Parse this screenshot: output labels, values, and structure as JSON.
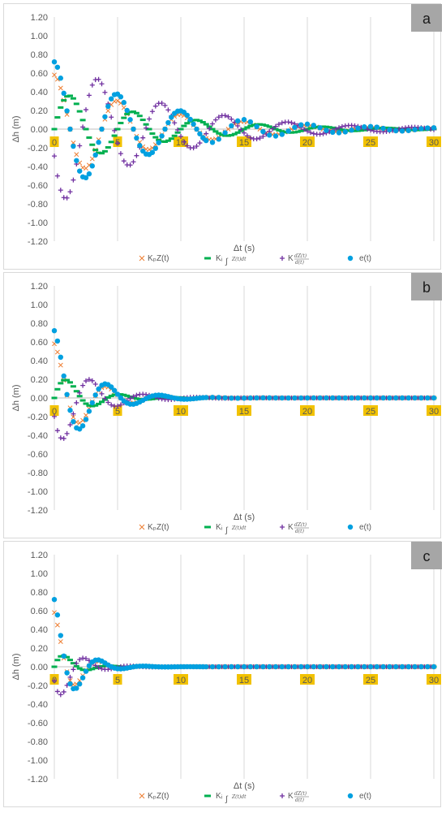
{
  "chart_data": [
    {
      "type": "scatter",
      "panel_label": "a",
      "xlabel": "Δt (s)",
      "ylabel": "Δh (m)",
      "xlim": [
        0,
        30
      ],
      "ylim": [
        -1.2,
        1.2
      ],
      "yticks": [
        "1.20",
        "1.00",
        "0.80",
        "0.60",
        "0.40",
        "0.20",
        "0.00",
        "-0.20",
        "-0.40",
        "-0.60",
        "-0.80",
        "-1.00",
        "-1.20"
      ],
      "xticks": [
        "0",
        "5",
        "10",
        "15",
        "20",
        "25",
        "30"
      ],
      "grid": "vertical",
      "legend_position": "bottom",
      "signal": {
        "e0": 0.72,
        "decay": 0.13,
        "period": 5.0,
        "kp_amp": 0.58,
        "ki_amp": 0.42,
        "kd_amp": 0.84
      },
      "series": [
        {
          "name": "KpZ(t)",
          "marker": "x",
          "color": "#ed7d31"
        },
        {
          "name": "Ki∫0t Z(t)dt",
          "marker": "dash",
          "color": "#00b050"
        },
        {
          "name": "Kd dZ(t)/d(t)",
          "marker": "plus",
          "color": "#7030a0"
        },
        {
          "name": "e(t)",
          "marker": "circle",
          "color": "#00a0e0"
        }
      ]
    },
    {
      "type": "scatter",
      "panel_label": "b",
      "xlabel": "Δt (s)",
      "ylabel": "Δh (m)",
      "xlim": [
        0,
        30
      ],
      "ylim": [
        -1.2,
        1.2
      ],
      "yticks": [
        "1.20",
        "1.00",
        "0.80",
        "0.60",
        "0.40",
        "0.20",
        "0.00",
        "-0.20",
        "-0.40",
        "-0.60",
        "-0.80",
        "-1.00",
        "-1.20"
      ],
      "xticks": [
        "0",
        "5",
        "10",
        "15",
        "20",
        "25",
        "30"
      ],
      "grid": "vertical",
      "legend_position": "bottom",
      "signal": {
        "e0": 0.72,
        "decay": 0.38,
        "period": 4.2,
        "kp_amp": 0.58,
        "ki_amp": 0.28,
        "kd_amp": 0.58
      },
      "series": [
        {
          "name": "KpZ(t)",
          "marker": "x",
          "color": "#ed7d31"
        },
        {
          "name": "Ki∫0t Z(t)dt",
          "marker": "dash",
          "color": "#00b050"
        },
        {
          "name": "Kd dZ(t)/d(t)",
          "marker": "plus",
          "color": "#7030a0"
        },
        {
          "name": "e(t)",
          "marker": "circle",
          "color": "#00a0e0"
        }
      ]
    },
    {
      "type": "scatter",
      "panel_label": "c",
      "xlabel": "Δt (s)",
      "ylabel": "Δh (m)",
      "xlim": [
        0,
        30
      ],
      "ylim": [
        -1.2,
        1.2
      ],
      "yticks": [
        "1.20",
        "1.00",
        "0.80",
        "0.60",
        "0.40",
        "0.20",
        "0.00",
        "-0.20",
        "-0.40",
        "-0.60",
        "-0.80",
        "-1.00",
        "-1.20"
      ],
      "xticks": [
        "0",
        "5",
        "10",
        "15",
        "20",
        "25",
        "30"
      ],
      "grid": "vertical",
      "legend_position": "bottom",
      "signal": {
        "e0": 0.72,
        "decay": 0.65,
        "period": 3.6,
        "kp_amp": 0.58,
        "ki_amp": 0.2,
        "kd_amp": 0.44
      },
      "series": [
        {
          "name": "KpZ(t)",
          "marker": "x",
          "color": "#ed7d31"
        },
        {
          "name": "Ki∫0t Z(t)dt",
          "marker": "dash",
          "color": "#00b050"
        },
        {
          "name": "Kd dZ(t)/d(t)",
          "marker": "plus",
          "color": "#7030a0"
        },
        {
          "name": "e(t)",
          "marker": "circle",
          "color": "#00a0e0"
        }
      ]
    }
  ],
  "legend_labels": {
    "kp": "KₚZ(t)",
    "ki_sym": "Kᵢ",
    "ki_expr": "Z(t)dt",
    "kd": "K",
    "kd_num": "dZ(t)",
    "kd_den": "d(t)",
    "et": "e(t)"
  }
}
